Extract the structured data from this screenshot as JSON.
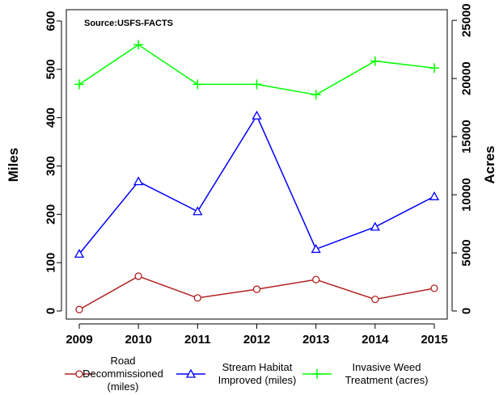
{
  "chart_data": {
    "type": "line",
    "annotation": "Source:USFS-FACTS",
    "ylabel_left": "Miles",
    "ylabel_right": "Acres",
    "x": [
      "2009",
      "2010",
      "2011",
      "2012",
      "2013",
      "2014",
      "2015"
    ],
    "ylim_left": [
      0,
      600
    ],
    "yticks_left": [
      "0",
      "100",
      "200",
      "300",
      "400",
      "500",
      "600"
    ],
    "ylim_right": [
      0,
      25000
    ],
    "yticks_right": [
      "0",
      "5000",
      "10000",
      "15000",
      "20000",
      "25000"
    ],
    "grid": false,
    "legend_position": "bottom",
    "series": [
      {
        "name": "Road Decommissioned (miles)",
        "legend_lines": [
          "Road",
          "Decommissioned",
          "(miles)"
        ],
        "axis": "left",
        "color": "#b22222",
        "marker": "circle",
        "values": [
          3,
          72,
          27,
          45,
          65,
          24,
          47
        ]
      },
      {
        "name": "Stream Habitat Improved (miles)",
        "legend_lines": [
          "Stream Habitat",
          "Improved (miles)"
        ],
        "axis": "left",
        "color": "#0000ff",
        "marker": "triangle",
        "values": [
          118,
          268,
          206,
          404,
          128,
          174,
          237
        ]
      },
      {
        "name": "Invasive Weed Treatment (acres)",
        "legend_lines": [
          "Invasive Weed",
          "Treatment (acres)"
        ],
        "axis": "right",
        "color": "#00ff00",
        "marker": "plus",
        "values": [
          19500,
          22900,
          19500,
          19500,
          18600,
          21500,
          20900
        ]
      }
    ]
  }
}
